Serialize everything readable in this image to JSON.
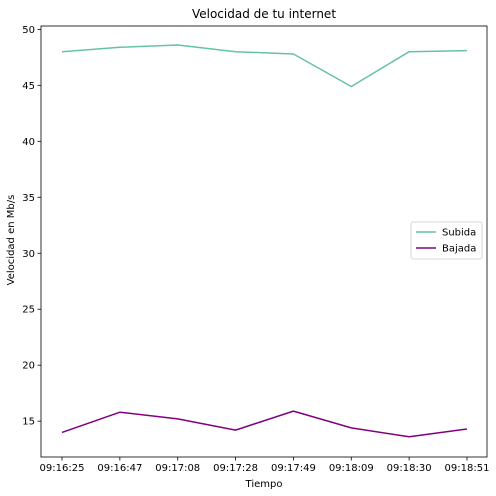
{
  "chart_data": {
    "type": "line",
    "title": "Velocidad de tu internet",
    "xlabel": "Tiempo",
    "ylabel": "Velocidad en Mb/s",
    "categories": [
      "09:16:25",
      "09:16:47",
      "09:17:08",
      "09:17:28",
      "09:17:49",
      "09:18:09",
      "09:18:30",
      "09:18:51"
    ],
    "ylim": [
      11.8,
      50.3
    ],
    "yticks": [
      15,
      20,
      25,
      30,
      35,
      40,
      45,
      50
    ],
    "grid": false,
    "legend_position": "center-right",
    "series": [
      {
        "name": "Subida",
        "color": "#66c2a5",
        "values": [
          48.0,
          48.4,
          48.6,
          48.0,
          47.8,
          44.9,
          48.0,
          48.1
        ]
      },
      {
        "name": "Bajada",
        "color": "#800080",
        "values": [
          14.0,
          15.8,
          15.2,
          14.2,
          15.9,
          14.4,
          13.6,
          14.3
        ]
      }
    ]
  }
}
